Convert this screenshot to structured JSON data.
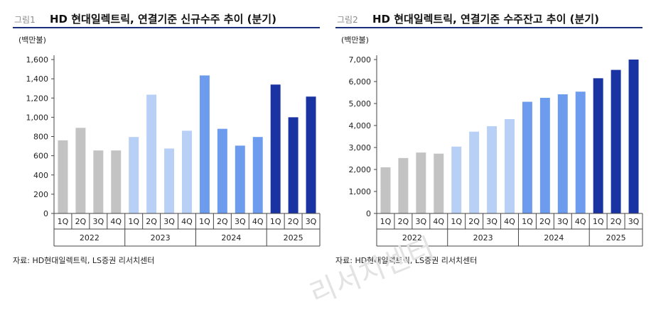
{
  "watermark": "리서치센터",
  "charts": [
    {
      "fig_no": "그림1",
      "title": "HD 현대일렉트릭, 연결기준 신규수주 추이 (분기)",
      "unit": "(백만불)",
      "source": "자료: HD현대일렉트릭, LS증권 리서치센터"
    },
    {
      "fig_no": "그림2",
      "title": "HD 현대일렉트릭, 연결기준 수주잔고 추이 (분기)",
      "unit": "(백만불)",
      "source": "자료: HD현대일렉트릭, LS증권 리서치센터"
    }
  ],
  "chart_data": [
    {
      "type": "bar",
      "title": "HD 현대일렉트릭, 연결기준 신규수주 추이 (분기)",
      "ylabel": "(백만불)",
      "categories": [
        "1Q",
        "2Q",
        "3Q",
        "4Q",
        "1Q",
        "2Q",
        "3Q",
        "4Q",
        "1Q",
        "2Q",
        "3Q",
        "4Q",
        "1Q",
        "2Q",
        "3Q"
      ],
      "groups": [
        "2022",
        "2023",
        "2024",
        "2025"
      ],
      "group_sizes": [
        4,
        4,
        4,
        3
      ],
      "values": [
        760,
        890,
        655,
        655,
        795,
        1235,
        675,
        860,
        1435,
        880,
        705,
        795,
        1340,
        1000,
        1215
      ],
      "ylim": [
        0,
        1600
      ],
      "yticks": [
        0,
        200,
        400,
        600,
        800,
        1000,
        1200,
        1400,
        1600
      ],
      "ytick_labels": [
        "0",
        "200",
        "400",
        "600",
        "800",
        "1,000",
        "1,200",
        "1,400",
        "1,600"
      ],
      "group_colors": [
        "#c3c3c3",
        "#b8d0f6",
        "#6d9cee",
        "#1a33a3"
      ],
      "grid": false
    },
    {
      "type": "bar",
      "title": "HD 현대일렉트릭, 연결기준 수주잔고 추이 (분기)",
      "ylabel": "(백만불)",
      "categories": [
        "1Q",
        "2Q",
        "3Q",
        "4Q",
        "1Q",
        "2Q",
        "3Q",
        "4Q",
        "1Q",
        "2Q",
        "3Q",
        "4Q",
        "1Q",
        "2Q",
        "3Q"
      ],
      "groups": [
        "2022",
        "2023",
        "2024",
        "2025"
      ],
      "group_sizes": [
        4,
        4,
        4,
        3
      ],
      "values": [
        2100,
        2520,
        2770,
        2720,
        3040,
        3720,
        3970,
        4290,
        5080,
        5260,
        5420,
        5540,
        6150,
        6530,
        7000
      ],
      "ylim": [
        0,
        7000
      ],
      "yticks": [
        0,
        1000,
        2000,
        3000,
        4000,
        5000,
        6000,
        7000
      ],
      "ytick_labels": [
        "0",
        "1,000",
        "2,000",
        "3,000",
        "4,000",
        "5,000",
        "6,000",
        "7,000"
      ],
      "group_colors": [
        "#c3c3c3",
        "#b8d0f6",
        "#6d9cee",
        "#1a33a3"
      ],
      "grid": false
    }
  ]
}
